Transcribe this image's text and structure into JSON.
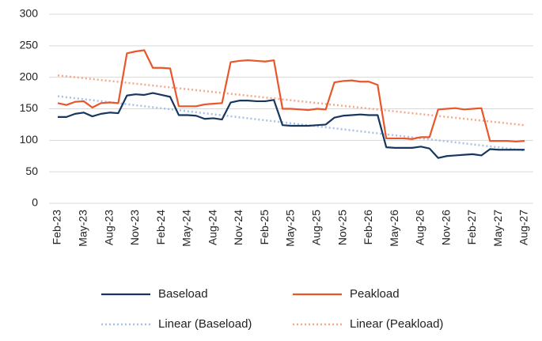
{
  "chart_data": {
    "type": "line",
    "categories": [
      "Feb-23",
      null,
      null,
      "May-23",
      null,
      null,
      "Aug-23",
      null,
      null,
      "Nov-23",
      null,
      null,
      "Feb-24",
      null,
      null,
      "May-24",
      null,
      null,
      "Aug-24",
      null,
      null,
      "Nov-24",
      null,
      null,
      "Feb-25",
      null,
      null,
      "May-25",
      null,
      null,
      "Aug-25",
      null,
      null,
      "Nov-25",
      null,
      null,
      "Feb-26",
      null,
      null,
      "May-26",
      null,
      null,
      "Aug-26",
      null,
      null,
      "Nov-26",
      null,
      null,
      "Feb-27",
      null,
      null,
      "May-27",
      null,
      null,
      "Aug-27"
    ],
    "series": [
      {
        "name": "Baseload",
        "color": "#17375e",
        "values": [
          137,
          137,
          142,
          144,
          138,
          142,
          144,
          143,
          171,
          173,
          172,
          175,
          172,
          169,
          140,
          140,
          139,
          134,
          135,
          133,
          160,
          163,
          163,
          162,
          162,
          164,
          124,
          123,
          123,
          123,
          124,
          125,
          136,
          139,
          140,
          141,
          140,
          140,
          89,
          88,
          88,
          88,
          90,
          87,
          72,
          75,
          76,
          77,
          78,
          76,
          86,
          85,
          85,
          85,
          85
        ]
      },
      {
        "name": "Peakload",
        "color": "#e8562a",
        "values": [
          159,
          156,
          161,
          162,
          152,
          159,
          160,
          159,
          238,
          241,
          243,
          215,
          215,
          214,
          154,
          154,
          154,
          157,
          158,
          159,
          224,
          226,
          227,
          226,
          225,
          227,
          150,
          150,
          149,
          148,
          150,
          149,
          192,
          194,
          195,
          193,
          193,
          188,
          103,
          103,
          103,
          102,
          105,
          105,
          149,
          150,
          151,
          149,
          150,
          151,
          99,
          99,
          99,
          98,
          99
        ]
      }
    ],
    "trendlines": [
      {
        "name": "Linear (Baseload)",
        "color": "#a9c1e6",
        "values": [
          170,
          84
        ]
      },
      {
        "name": "Linear (Peakload)",
        "color": "#f5a88c",
        "values": [
          203,
          124
        ]
      }
    ],
    "ylim": [
      0,
      300
    ],
    "yticks": [
      0,
      50,
      100,
      150,
      200,
      250,
      300
    ],
    "grid": true
  }
}
